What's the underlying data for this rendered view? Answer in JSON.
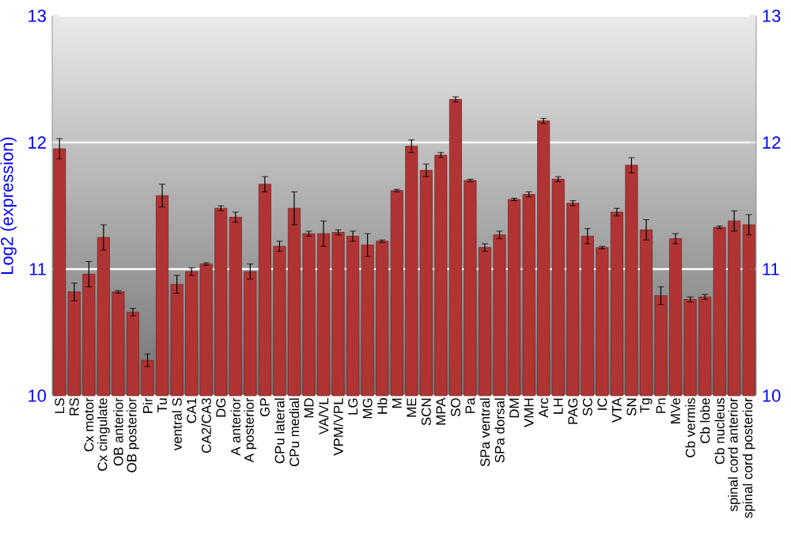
{
  "chart_data": {
    "type": "bar",
    "ylabel": "Log2 (expression)",
    "categories": [
      "LS",
      "RS",
      "Cx motor",
      "Cx cingulate",
      "OB anterior",
      "OB posterior",
      "Pir",
      "Tu",
      "ventral S",
      "CA1",
      "CA2/CA3",
      "DG",
      "A anterior",
      "A posterior",
      "GP",
      "CPu lateral",
      "CPu medial",
      "MD",
      "VA/VL",
      "VPM/VPL",
      "LG",
      "MG",
      "Hb",
      "M",
      "ME",
      "SCN",
      "MPA",
      "SO",
      "Pa",
      "SPa ventral",
      "SPa dorsal",
      "DM",
      "VMH",
      "Arc",
      "LH",
      "PAG",
      "SC",
      "IC",
      "VTA",
      "SN",
      "Tg",
      "Pn",
      "MVe",
      "Cb vermis",
      "Cb lobe",
      "Cb nucleus",
      "spinal cord anterior",
      "spinal cord posterior"
    ],
    "values": [
      11.95,
      10.82,
      10.96,
      11.25,
      10.82,
      10.66,
      10.28,
      11.58,
      10.88,
      10.98,
      11.04,
      11.48,
      11.41,
      10.98,
      11.67,
      11.18,
      11.48,
      11.28,
      11.28,
      11.29,
      11.26,
      11.19,
      11.22,
      11.62,
      11.97,
      11.78,
      11.9,
      12.34,
      11.7,
      11.17,
      11.27,
      11.55,
      11.59,
      12.17,
      11.71,
      11.52,
      11.26,
      11.17,
      11.45,
      11.82,
      11.31,
      10.79,
      11.24,
      10.76,
      10.78,
      11.33,
      11.38,
      11.35
    ],
    "errors": [
      0.08,
      0.07,
      0.1,
      0.1,
      0.01,
      0.03,
      0.05,
      0.09,
      0.07,
      0.03,
      0.01,
      0.02,
      0.04,
      0.06,
      0.06,
      0.04,
      0.13,
      0.02,
      0.1,
      0.02,
      0.04,
      0.09,
      0.01,
      0.01,
      0.05,
      0.05,
      0.02,
      0.02,
      0.01,
      0.03,
      0.03,
      0.01,
      0.02,
      0.02,
      0.02,
      0.02,
      0.06,
      0.01,
      0.03,
      0.06,
      0.08,
      0.07,
      0.04,
      0.02,
      0.02,
      0.01,
      0.08,
      0.08
    ],
    "color": "#b03434",
    "ylim": [
      10,
      13
    ],
    "yticks": [
      10,
      11,
      12,
      13
    ],
    "y2lim": [
      10,
      13
    ],
    "y2ticks": [
      10,
      11,
      12,
      13
    ],
    "grid": "y"
  }
}
